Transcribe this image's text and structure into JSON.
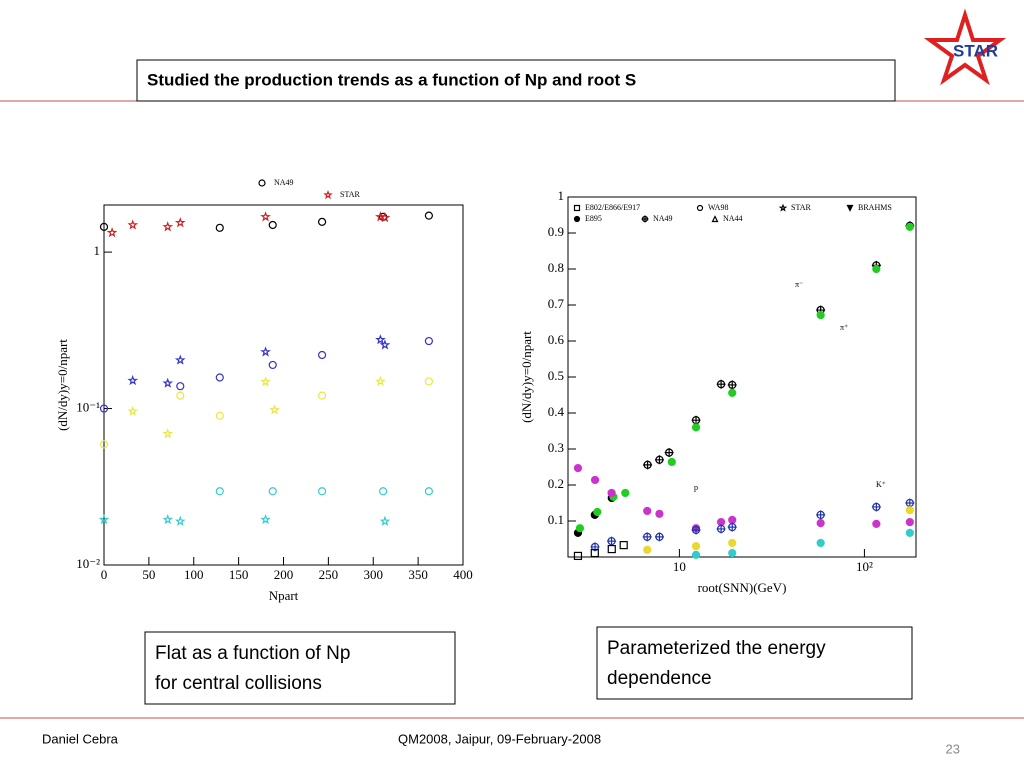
{
  "logo": "STAR",
  "header": {
    "title": "Studied the production trends as a function of Np and root S"
  },
  "boxes": [
    "Flat as a function of Np for central collisions",
    "Parameterized the energy dependence"
  ],
  "footer": {
    "author": "Daniel Cebra",
    "event": "QM2008, Jaipur, 09-February-2008",
    "page": "23"
  },
  "chart_data": [
    {
      "type": "scatter",
      "x_label": "Npart",
      "y_label": "(dN/dy)y=0/npart",
      "xlim": [
        0,
        400
      ],
      "xticks": [
        0,
        50,
        100,
        150,
        200,
        250,
        300,
        350,
        400
      ],
      "ylim": [
        0.01,
        2
      ],
      "y_log": true,
      "yticks": [
        {
          "value": 0.01,
          "label": "10⁻²"
        },
        {
          "value": 0.1,
          "label": "10⁻¹"
        },
        1
      ],
      "series": [
        {
          "name": "NA49",
          "color": "#000000",
          "marker": "circle",
          "x": [
            0,
            129,
            188,
            243,
            311,
            362
          ],
          "values": [
            1.45,
            1.43,
            1.49,
            1.56,
            1.68,
            1.71
          ]
        },
        {
          "name": "STAR",
          "color": "#cc2222",
          "marker": "star",
          "x": [
            9,
            32,
            71,
            85,
            180,
            308,
            313
          ],
          "values": [
            1.33,
            1.49,
            1.45,
            1.54,
            1.68,
            1.68,
            1.66
          ]
        },
        {
          "color": "#3333cc",
          "marker": "circle",
          "x": [
            0,
            85,
            129,
            188,
            243,
            362
          ],
          "values": [
            0.1,
            0.139,
            0.158,
            0.19,
            0.22,
            0.27
          ]
        },
        {
          "color": "#3333cc",
          "marker": "star",
          "x": [
            32,
            71,
            85,
            180,
            308,
            313
          ],
          "values": [
            0.151,
            0.145,
            0.204,
            0.23,
            0.275,
            0.255
          ]
        },
        {
          "color": "#e8e840",
          "marker": "circle",
          "x": [
            0,
            85,
            129,
            243,
            362
          ],
          "values": [
            0.059,
            0.121,
            0.09,
            0.121,
            0.149
          ]
        },
        {
          "color": "#e8e840",
          "marker": "star",
          "x": [
            32,
            71,
            180,
            190,
            308
          ],
          "values": [
            0.096,
            0.069,
            0.148,
            0.098,
            0.149
          ]
        },
        {
          "color": "#33cccc",
          "marker": "circle",
          "x": [
            129,
            188,
            243,
            311,
            362
          ],
          "values": [
            0.0296,
            0.0296,
            0.0296,
            0.0296,
            0.0296
          ]
        },
        {
          "color": "#33cccc",
          "marker": "star",
          "x": [
            0,
            71,
            85,
            180,
            313
          ],
          "values": [
            0.0195,
            0.0195,
            0.019,
            0.0195,
            0.019
          ]
        }
      ]
    },
    {
      "type": "scatter",
      "x_label": "root(SNN)(GeV)",
      "y_label": "(dN/dy)y=0/npart",
      "xlim": [
        2.5,
        190
      ],
      "x_log": true,
      "xticks": [
        10,
        {
          "value": 100,
          "label": "10²"
        }
      ],
      "ylim": [
        0,
        1
      ],
      "yticks": [
        0.1,
        0.2,
        0.3,
        0.4,
        0.5,
        0.6,
        0.7,
        0.8,
        0.9,
        1
      ],
      "legend_entries": [
        {
          "label": "E802/E866/E917",
          "marker": "square"
        },
        {
          "label": "WA98",
          "marker": "circle"
        },
        {
          "label": "STAR",
          "marker": "star"
        },
        {
          "label": "BRAHMS",
          "marker": "triangle-down"
        },
        {
          "label": "E895",
          "marker": "dot"
        },
        {
          "label": "NA49",
          "marker": "cross"
        },
        {
          "label": "NA44",
          "marker": "triangle"
        }
      ],
      "annotations": [
        "π⁻",
        "π⁺",
        "p",
        "K⁺"
      ],
      "series": [
        {
          "color": "#000000",
          "marker": "dot",
          "x": [
            2.83,
            3.49,
            4.31
          ],
          "values": [
            0.067,
            0.117,
            0.164
          ]
        },
        {
          "color": "#000000",
          "marker": "cross",
          "x": [
            6.73,
            7.8,
            8.8,
            12.3,
            16.8,
            19.3,
            58,
            116,
            176
          ],
          "values": [
            0.256,
            0.27,
            0.29,
            0.38,
            0.48,
            0.478,
            0.686,
            0.81,
            0.92
          ]
        },
        {
          "color": "#22cc22",
          "marker": "dot",
          "x": [
            2.9,
            3.6,
            4.4,
            5.1,
            9.1,
            12.3,
            19.3,
            58,
            116,
            176
          ],
          "values": [
            0.08,
            0.125,
            0.167,
            0.178,
            0.264,
            0.36,
            0.456,
            0.672,
            0.8,
            0.917
          ]
        },
        {
          "color": "#cc33cc",
          "marker": "dot",
          "x": [
            2.83,
            3.5,
            4.3,
            6.7,
            7.8,
            12.3,
            16.8,
            19.3,
            58,
            116,
            176
          ],
          "values": [
            0.247,
            0.214,
            0.178,
            0.128,
            0.12,
            0.08,
            0.097,
            0.103,
            0.094,
            0.092,
            0.097
          ]
        },
        {
          "color": "#2233aa",
          "marker": "cross",
          "x": [
            3.5,
            4.3,
            6.7,
            7.8,
            12.3,
            16.8,
            19.3,
            58,
            116,
            176
          ],
          "values": [
            0.028,
            0.044,
            0.056,
            0.056,
            0.075,
            0.078,
            0.083,
            0.117,
            0.139,
            0.15
          ]
        },
        {
          "color": "#e8d830",
          "marker": "dot",
          "x": [
            6.7,
            12.3,
            19.3,
            176
          ],
          "values": [
            0.02,
            0.03,
            0.039,
            0.13
          ]
        },
        {
          "color": "#33cccc",
          "marker": "dot",
          "x": [
            12.3,
            19.3,
            58,
            176
          ],
          "values": [
            0.006,
            0.011,
            0.039,
            0.067
          ]
        },
        {
          "color": "#000000",
          "marker": "square",
          "x": [
            2.83,
            3.49,
            4.31,
            5.0
          ],
          "values": [
            0.003,
            0.011,
            0.022,
            0.033
          ]
        }
      ]
    }
  ]
}
